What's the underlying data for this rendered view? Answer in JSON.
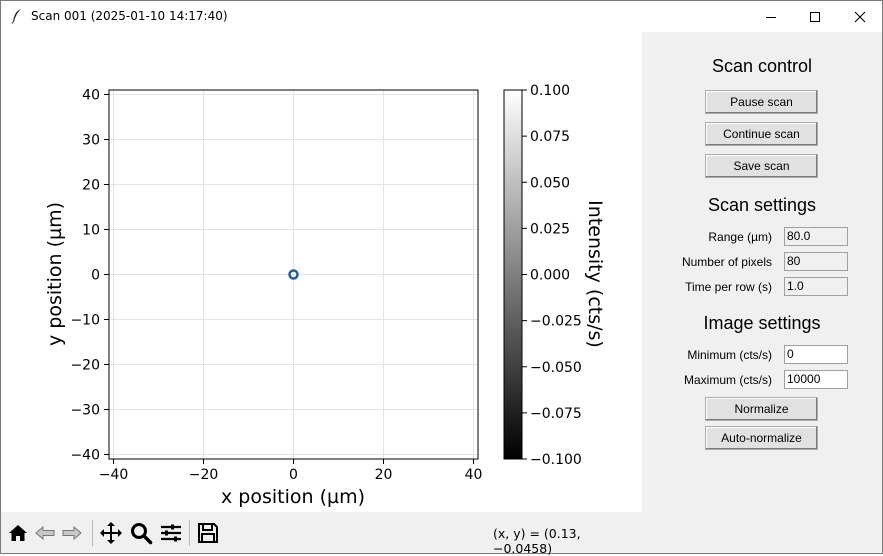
{
  "window": {
    "title": "Scan 001 (2025-01-10 14:17:40)"
  },
  "chart_data": {
    "type": "scatter",
    "x": [
      0
    ],
    "y": [
      0
    ],
    "xlabel": "x position (µm)",
    "ylabel": "y position (µm)",
    "xlim": [
      -41,
      41
    ],
    "ylim": [
      -41,
      41
    ],
    "xticks": [
      "−40",
      "−20",
      "0",
      "20",
      "40"
    ],
    "yticks": [
      "40",
      "30",
      "20",
      "10",
      "0",
      "−10",
      "−20",
      "−30",
      "−40"
    ],
    "grid": true,
    "marker_color": "#1f5f9e",
    "colorbar": {
      "label": "Intensity (cts/s)",
      "range": [
        -0.1,
        0.1
      ],
      "ticks": [
        "0.100",
        "0.075",
        "0.050",
        "0.025",
        "0.000",
        "−0.025",
        "−0.050",
        "−0.075",
        "−0.100"
      ],
      "colormap": "gray"
    }
  },
  "toolbar": {
    "icons": [
      "home-icon",
      "back-arrow-icon",
      "forward-arrow-icon",
      "pan-icon",
      "zoom-icon",
      "configure-subplots-icon",
      "save-icon"
    ],
    "coords": "(x, y) = (0.13, −0.0458)"
  },
  "scan_control": {
    "title": "Scan control",
    "pause_label": "Pause scan",
    "continue_label": "Continue scan",
    "save_label": "Save scan"
  },
  "scan_settings": {
    "title": "Scan settings",
    "range_label": "Range (µm)",
    "range_value": "80.0",
    "pixels_label": "Number of pixels",
    "pixels_value": "80",
    "time_label": "Time per row (s)",
    "time_value": "1.0"
  },
  "image_settings": {
    "title": "Image settings",
    "min_label": "Minimum (cts/s)",
    "min_value": "0",
    "max_label": "Maximum (cts/s)",
    "max_value": "10000",
    "normalize_label": "Normalize",
    "autonormalize_label": "Auto-normalize"
  }
}
